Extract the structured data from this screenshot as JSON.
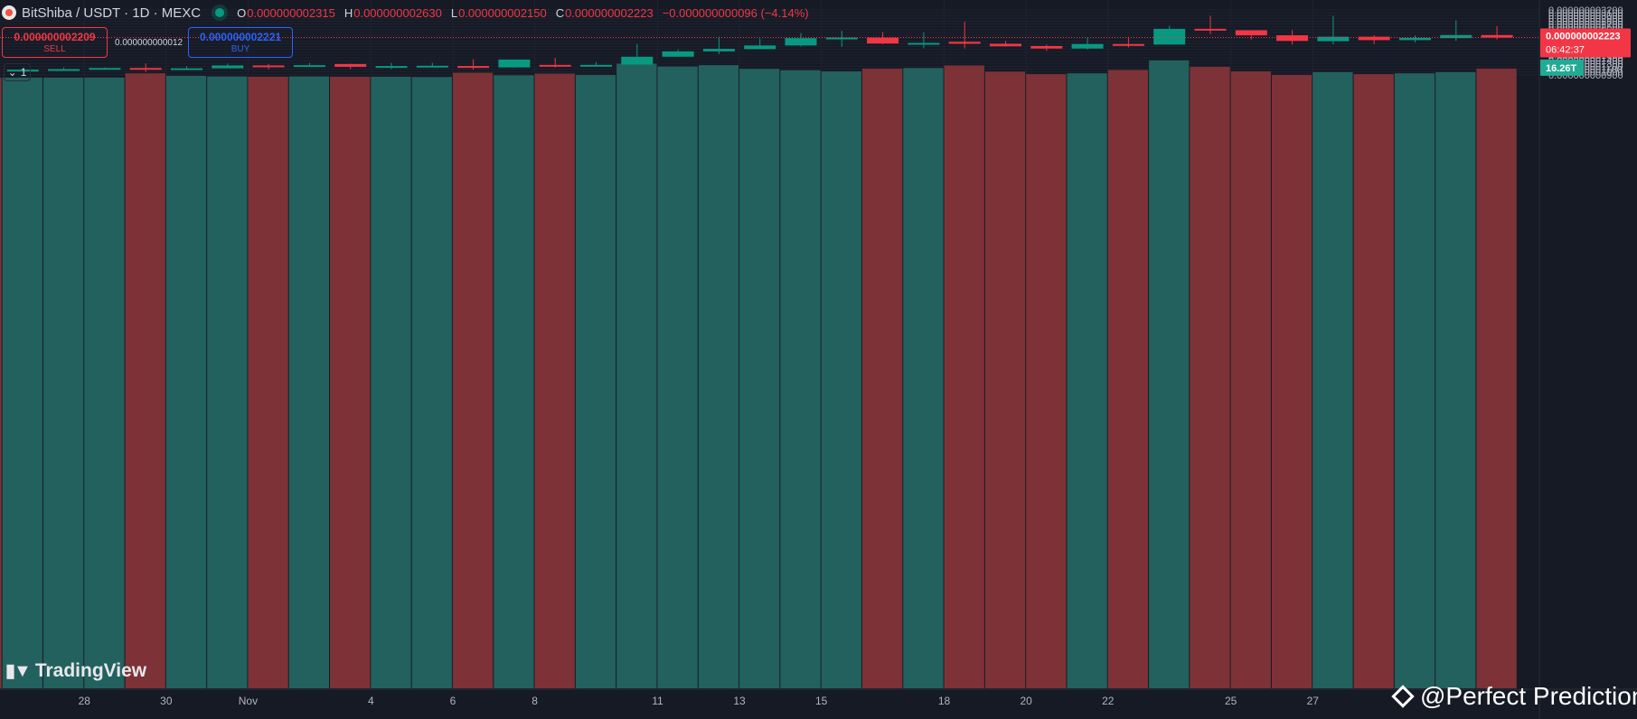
{
  "header": {
    "symbol": "BitShiba / USDT · 1D · MEXC",
    "o_key": "O",
    "o_val": "0.000000002315",
    "h_key": "H",
    "h_val": "0.000000002630",
    "l_key": "L",
    "l_val": "0.000000002150",
    "c_key": "C",
    "c_val": "0.000000002223",
    "change": "−0.000000000096 (−4.14%)"
  },
  "trade": {
    "sell_price": "0.000000002209",
    "sell_label": "SELL",
    "spread": "0.000000000012",
    "buy_price": "0.000000002221",
    "buy_label": "BUY"
  },
  "collapse_label": "1",
  "branding": {
    "logo_text": "TradingView",
    "watermark": "@Perfect Prediction"
  },
  "colors": {
    "up": "#089981",
    "down": "#f23645",
    "background": "#161a25",
    "volume_up": "#22615e",
    "volume_down": "#7d3237"
  },
  "chart_data": {
    "type": "candlestick",
    "price_axis_labels": [
      "0.000000003200",
      "0.000000003100",
      "0.000000003000",
      "0.000000002900",
      "0.000000002800",
      "0.000000002700",
      "0.000000002600",
      "0.000000002500",
      "0.000000002400",
      "0.000000002300",
      "0.000000002100",
      "0.000000002000",
      "0.000000001900",
      "0.000000001800",
      "0.000000001700",
      "0.000000001600",
      "0.000000001500",
      "0.000000001400",
      "0.000000001300",
      "0.000000001200",
      "0.000000001100",
      "0.000000001000",
      "0.000000000900"
    ],
    "price_unit": "1e-9",
    "ylim": [
      0.82,
      3.24
    ],
    "last_price": "0.000000002223",
    "countdown": "06:42:37",
    "volume_label": "16.26T",
    "x_labels": [
      {
        "i": 2.5,
        "t": "28"
      },
      {
        "i": 4.5,
        "t": "30"
      },
      {
        "i": 6.5,
        "t": "Nov"
      },
      {
        "i": 9.5,
        "t": "4"
      },
      {
        "i": 11.5,
        "t": "6"
      },
      {
        "i": 13.5,
        "t": "8"
      },
      {
        "i": 16.5,
        "t": "11"
      },
      {
        "i": 18.5,
        "t": "13"
      },
      {
        "i": 20.5,
        "t": "15"
      },
      {
        "i": 23.5,
        "t": "18"
      },
      {
        "i": 25.5,
        "t": "20"
      },
      {
        "i": 27.5,
        "t": "22"
      },
      {
        "i": 30.5,
        "t": "25"
      },
      {
        "i": 32.5,
        "t": "27"
      }
    ],
    "candles": [
      {
        "o": 1.14,
        "h": 1.17,
        "l": 1.05,
        "c": 1.06
      },
      {
        "o": 1.06,
        "h": 1.12,
        "l": 1.05,
        "c": 1.08
      },
      {
        "o": 1.08,
        "h": 1.16,
        "l": 1.04,
        "c": 1.1
      },
      {
        "o": 1.1,
        "h": 1.16,
        "l": 1.1,
        "c": 1.14
      },
      {
        "o": 1.14,
        "h": 1.3,
        "l": 1.0,
        "c": 1.08
      },
      {
        "o": 1.08,
        "h": 1.2,
        "l": 1.08,
        "c": 1.13
      },
      {
        "o": 1.13,
        "h": 1.3,
        "l": 1.13,
        "c": 1.23
      },
      {
        "o": 1.23,
        "h": 1.28,
        "l": 1.1,
        "c": 1.2
      },
      {
        "o": 1.2,
        "h": 1.32,
        "l": 1.19,
        "c": 1.24
      },
      {
        "o": 1.28,
        "h": 1.29,
        "l": 1.1,
        "c": 1.18
      },
      {
        "o": 1.2,
        "h": 1.32,
        "l": 1.1,
        "c": 1.21
      },
      {
        "o": 1.21,
        "h": 1.32,
        "l": 1.2,
        "c": 1.22
      },
      {
        "o": 1.21,
        "h": 1.45,
        "l": 1.08,
        "c": 1.16
      },
      {
        "o": 1.16,
        "h": 1.43,
        "l": 1.15,
        "c": 1.44
      },
      {
        "o": 1.25,
        "h": 1.5,
        "l": 1.16,
        "c": 1.21
      },
      {
        "o": 1.22,
        "h": 1.35,
        "l": 1.22,
        "c": 1.25
      },
      {
        "o": 1.26,
        "h": 1.99,
        "l": 1.26,
        "c": 1.54
      },
      {
        "o": 1.54,
        "h": 1.8,
        "l": 1.54,
        "c": 1.73
      },
      {
        "o": 1.73,
        "h": 2.25,
        "l": 1.63,
        "c": 1.82
      },
      {
        "o": 1.81,
        "h": 2.19,
        "l": 1.81,
        "c": 1.94
      },
      {
        "o": 1.94,
        "h": 2.38,
        "l": 1.9,
        "c": 2.2
      },
      {
        "o": 2.19,
        "h": 2.46,
        "l": 1.89,
        "c": 2.22
      },
      {
        "o": 2.22,
        "h": 2.42,
        "l": 1.98,
        "c": 2.01
      },
      {
        "o": 2.01,
        "h": 2.41,
        "l": 1.84,
        "c": 2.03
      },
      {
        "o": 2.07,
        "h": 2.78,
        "l": 1.83,
        "c": 2.0
      },
      {
        "o": 2.0,
        "h": 2.1,
        "l": 1.91,
        "c": 1.91
      },
      {
        "o": 1.92,
        "h": 1.97,
        "l": 1.75,
        "c": 1.83
      },
      {
        "o": 1.83,
        "h": 2.21,
        "l": 1.79,
        "c": 1.99
      },
      {
        "o": 1.99,
        "h": 2.25,
        "l": 1.87,
        "c": 1.96
      },
      {
        "o": 1.97,
        "h": 2.64,
        "l": 1.97,
        "c": 2.53
      },
      {
        "o": 2.53,
        "h": 2.99,
        "l": 2.34,
        "c": 2.48
      },
      {
        "o": 2.48,
        "h": 2.48,
        "l": 2.15,
        "c": 2.3
      },
      {
        "o": 2.3,
        "h": 2.48,
        "l": 1.97,
        "c": 2.1
      },
      {
        "o": 2.09,
        "h": 2.99,
        "l": 1.98,
        "c": 2.25
      },
      {
        "o": 2.25,
        "h": 2.3,
        "l": 1.99,
        "c": 2.13
      },
      {
        "o": 2.13,
        "h": 2.29,
        "l": 2.05,
        "c": 2.21
      },
      {
        "o": 2.2,
        "h": 2.83,
        "l": 2.1,
        "c": 2.31
      },
      {
        "o": 2.31,
        "h": 2.63,
        "l": 2.15,
        "c": 2.22
      }
    ],
    "volumes": [
      0.8,
      0.8,
      0.8,
      0.8,
      0.95,
      0.86,
      0.84,
      0.83,
      0.84,
      0.83,
      0.83,
      0.82,
      0.97,
      0.88,
      0.94,
      0.89,
      1.29,
      1.19,
      1.24,
      1.11,
      1.06,
      1.02,
      1.12,
      1.14,
      1.23,
      1.01,
      0.92,
      0.95,
      1.07,
      1.41,
      1.18,
      1.02,
      0.89,
      0.99,
      0.92,
      0.95,
      0.99,
      1.12
    ]
  }
}
